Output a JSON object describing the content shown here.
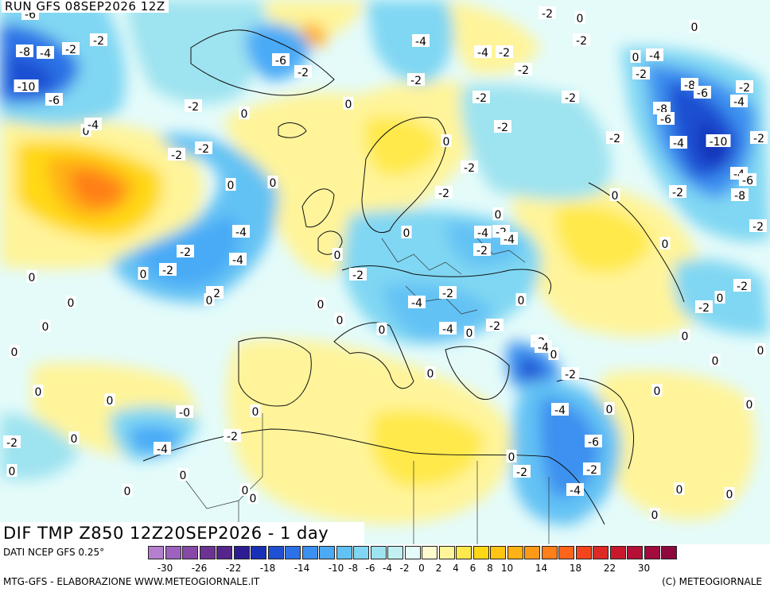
{
  "run_label": "RUN GFS 08SEP2026 12Z",
  "title": "DIF TMP Z850 12Z20SEP2026 - 1 day",
  "legend": {
    "source": "DATI NCEP GFS 0.25°",
    "colors": [
      "#b57fcf",
      "#9d62bd",
      "#8748a8",
      "#6d3393",
      "#55258d",
      "#2c1d93",
      "#1830b8",
      "#1f4fd2",
      "#2c72e6",
      "#3c91f0",
      "#4aaaf6",
      "#63c2f4",
      "#80d7f3",
      "#9ee3f0",
      "#c2f0f2",
      "#e4fbfa",
      "#fffbd0",
      "#fff49a",
      "#ffe94c",
      "#ffd815",
      "#ffc414",
      "#ffb115",
      "#ff9a18",
      "#ff7f19",
      "#ff641a",
      "#f3441b",
      "#de2a25",
      "#c9182c",
      "#b61037",
      "#a20b3d",
      "#8d083c"
    ],
    "ticks": [
      "-30",
      "-26",
      "-22",
      "-18",
      "-14",
      "-10",
      "-8",
      "-6",
      "-4",
      "-2",
      "0",
      "2",
      "4",
      "6",
      "8",
      "10",
      "14",
      "18",
      "22",
      "30"
    ]
  },
  "footer_left": "MTG-GFS - ELABORAZIONE WWW.METEOGIORNALE.IT",
  "footer_right": "(C) METEOGIORNALE",
  "contour_labels": [
    {
      "text": "-8",
      "at": [
        31,
        65
      ]
    },
    {
      "text": "-4",
      "at": [
        57,
        67
      ]
    },
    {
      "text": "-2",
      "at": [
        89,
        62
      ]
    },
    {
      "text": "-2",
      "at": [
        124,
        51
      ]
    },
    {
      "text": "-10",
      "at": [
        33,
        109
      ]
    },
    {
      "text": "-6",
      "at": [
        68,
        126
      ]
    },
    {
      "text": "-6",
      "at": [
        38,
        18
      ]
    },
    {
      "text": "0",
      "at": [
        108,
        165
      ]
    },
    {
      "text": "-4",
      "at": [
        117,
        157
      ]
    },
    {
      "text": "-6",
      "at": [
        353,
        76
      ]
    },
    {
      "text": "-2",
      "at": [
        381,
        91
      ]
    },
    {
      "text": "-2",
      "at": [
        243,
        134
      ]
    },
    {
      "text": "0",
      "at": [
        307,
        143
      ]
    },
    {
      "text": "0",
      "at": [
        438,
        131
      ]
    },
    {
      "text": "-4",
      "at": [
        529,
        52
      ]
    },
    {
      "text": "-2",
      "at": [
        523,
        101
      ]
    },
    {
      "text": "-4",
      "at": [
        607,
        66
      ]
    },
    {
      "text": "-2",
      "at": [
        634,
        66
      ]
    },
    {
      "text": "-2",
      "at": [
        658,
        88
      ]
    },
    {
      "text": "-2",
      "at": [
        688,
        17
      ]
    },
    {
      "text": "0",
      "at": [
        729,
        23
      ]
    },
    {
      "text": "-2",
      "at": [
        731,
        51
      ]
    },
    {
      "text": "0",
      "at": [
        873,
        34
      ]
    },
    {
      "text": "0",
      "at": [
        799,
        72
      ]
    },
    {
      "text": "-4",
      "at": [
        823,
        70
      ]
    },
    {
      "text": "-2",
      "at": [
        806,
        93
      ]
    },
    {
      "text": "-8",
      "at": [
        867,
        107
      ]
    },
    {
      "text": "-6",
      "at": [
        883,
        117
      ]
    },
    {
      "text": "-2",
      "at": [
        936,
        110
      ]
    },
    {
      "text": "-4",
      "at": [
        929,
        128
      ]
    },
    {
      "text": "-8",
      "at": [
        832,
        137
      ]
    },
    {
      "text": "-6",
      "at": [
        837,
        150
      ]
    },
    {
      "text": "-2",
      "at": [
        605,
        123
      ]
    },
    {
      "text": "-2",
      "at": [
        717,
        123
      ]
    },
    {
      "text": "-2",
      "at": [
        632,
        160
      ]
    },
    {
      "text": "-2",
      "at": [
        773,
        174
      ]
    },
    {
      "text": "-4",
      "at": [
        853,
        180
      ]
    },
    {
      "text": "-10",
      "at": [
        903,
        178
      ]
    },
    {
      "text": "-2",
      "at": [
        954,
        174
      ]
    },
    {
      "text": "-4",
      "at": [
        929,
        219
      ]
    },
    {
      "text": "-6",
      "at": [
        940,
        227
      ]
    },
    {
      "text": "-8",
      "at": [
        930,
        246
      ]
    },
    {
      "text": "-2",
      "at": [
        852,
        242
      ]
    },
    {
      "text": "-2",
      "at": [
        953,
        285
      ]
    },
    {
      "text": "0",
      "at": [
        773,
        246
      ]
    },
    {
      "text": "0",
      "at": [
        836,
        307
      ]
    },
    {
      "text": "-2",
      "at": [
        222,
        195
      ]
    },
    {
      "text": "-2",
      "at": [
        256,
        187
      ]
    },
    {
      "text": "0",
      "at": [
        290,
        233
      ]
    },
    {
      "text": "0",
      "at": [
        343,
        230
      ]
    },
    {
      "text": "0",
      "at": [
        561,
        178
      ]
    },
    {
      "text": "-2",
      "at": [
        590,
        211
      ]
    },
    {
      "text": "-2",
      "at": [
        558,
        243
      ]
    },
    {
      "text": "0",
      "at": [
        626,
        270
      ]
    },
    {
      "text": "-4",
      "at": [
        607,
        293
      ]
    },
    {
      "text": "-2",
      "at": [
        630,
        292
      ]
    },
    {
      "text": "-4",
      "at": [
        640,
        301
      ]
    },
    {
      "text": "0",
      "at": [
        511,
        293
      ]
    },
    {
      "text": "-2",
      "at": [
        606,
        315
      ]
    },
    {
      "text": "-4",
      "at": [
        303,
        292
      ]
    },
    {
      "text": "-4",
      "at": [
        299,
        327
      ]
    },
    {
      "text": "-2",
      "at": [
        233,
        317
      ]
    },
    {
      "text": "-2",
      "at": [
        211,
        340
      ]
    },
    {
      "text": "0",
      "at": [
        180,
        345
      ]
    },
    {
      "text": "0",
      "at": [
        40,
        349
      ]
    },
    {
      "text": "-2",
      "at": [
        270,
        369
      ]
    },
    {
      "text": "0",
      "at": [
        263,
        378
      ]
    },
    {
      "text": "0",
      "at": [
        89,
        381
      ]
    },
    {
      "text": "0",
      "at": [
        424,
        321
      ]
    },
    {
      "text": "-2",
      "at": [
        450,
        346
      ]
    },
    {
      "text": "0",
      "at": [
        403,
        383
      ]
    },
    {
      "text": "-4",
      "at": [
        524,
        381
      ]
    },
    {
      "text": "-2",
      "at": [
        563,
        369
      ]
    },
    {
      "text": "0",
      "at": [
        655,
        378
      ]
    },
    {
      "text": "-2",
      "at": [
        933,
        360
      ]
    },
    {
      "text": "0",
      "at": [
        905,
        375
      ]
    },
    {
      "text": "-2",
      "at": [
        885,
        387
      ]
    },
    {
      "text": "0",
      "at": [
        57,
        411
      ]
    },
    {
      "text": "0",
      "at": [
        427,
        403
      ]
    },
    {
      "text": "0",
      "at": [
        480,
        415
      ]
    },
    {
      "text": "-4",
      "at": [
        563,
        414
      ]
    },
    {
      "text": "0",
      "at": [
        590,
        419
      ]
    },
    {
      "text": "-2",
      "at": [
        622,
        410
      ]
    },
    {
      "text": "0",
      "at": [
        861,
        423
      ]
    },
    {
      "text": "0",
      "at": [
        18,
        443
      ]
    },
    {
      "text": "-2",
      "at": [
        678,
        430
      ]
    },
    {
      "text": "-4",
      "at": [
        683,
        437
      ]
    },
    {
      "text": "0",
      "at": [
        696,
        446
      ]
    },
    {
      "text": "0",
      "at": [
        956,
        441
      ]
    },
    {
      "text": "0",
      "at": [
        899,
        454
      ]
    },
    {
      "text": "0",
      "at": [
        541,
        470
      ]
    },
    {
      "text": "-2",
      "at": [
        717,
        471
      ]
    },
    {
      "text": "0",
      "at": [
        48,
        493
      ]
    },
    {
      "text": "0",
      "at": [
        826,
        492
      ]
    },
    {
      "text": "0",
      "at": [
        138,
        504
      ]
    },
    {
      "text": "0",
      "at": [
        942,
        509
      ]
    },
    {
      "text": "-4",
      "at": [
        704,
        516
      ]
    },
    {
      "text": "0",
      "at": [
        766,
        515
      ]
    },
    {
      "text": "-0",
      "at": [
        232,
        519
      ]
    },
    {
      "text": "0",
      "at": [
        321,
        518
      ]
    },
    {
      "text": "-2",
      "at": [
        292,
        549
      ]
    },
    {
      "text": "0",
      "at": [
        93,
        552
      ]
    },
    {
      "text": "-2",
      "at": [
        15,
        557
      ]
    },
    {
      "text": "-4",
      "at": [
        204,
        565
      ]
    },
    {
      "text": "-6",
      "at": [
        746,
        556
      ]
    },
    {
      "text": "0",
      "at": [
        643,
        575
      ]
    },
    {
      "text": "0",
      "at": [
        15,
        593
      ]
    },
    {
      "text": "0",
      "at": [
        230,
        598
      ]
    },
    {
      "text": "-2",
      "at": [
        656,
        594
      ]
    },
    {
      "text": "-2",
      "at": [
        744,
        591
      ]
    },
    {
      "text": "0",
      "at": [
        160,
        618
      ]
    },
    {
      "text": "0",
      "at": [
        308,
        617
      ]
    },
    {
      "text": "0",
      "at": [
        318,
        627
      ]
    },
    {
      "text": "-4",
      "at": [
        723,
        617
      ]
    },
    {
      "text": "0",
      "at": [
        854,
        616
      ]
    },
    {
      "text": "0",
      "at": [
        917,
        622
      ]
    },
    {
      "text": "0",
      "at": [
        823,
        648
      ]
    }
  ]
}
